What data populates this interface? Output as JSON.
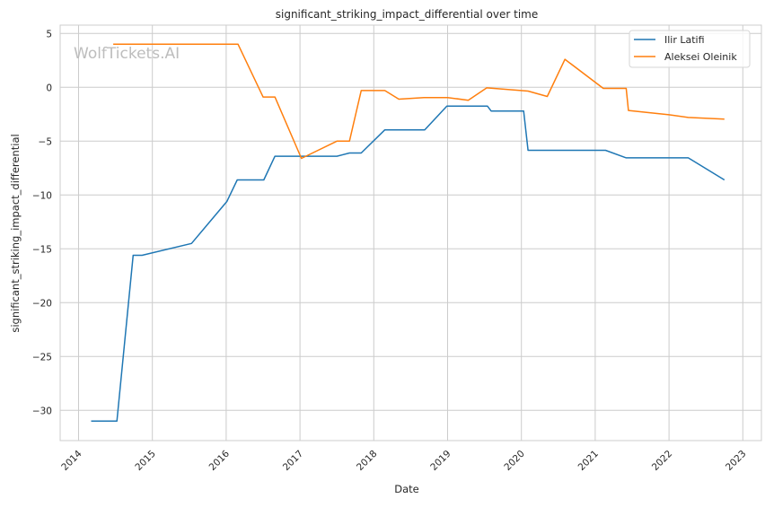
{
  "chart_data": {
    "type": "line",
    "title": "significant_striking_impact_differential over time",
    "xlabel": "Date",
    "ylabel": "significant_striking_impact_differential",
    "xlim": [
      2013.75,
      2023.2
    ],
    "ylim": [
      -32.8,
      5.8
    ],
    "xticks": [
      2014,
      2015,
      2016,
      2017,
      2018,
      2019,
      2020,
      2021,
      2022,
      2023
    ],
    "xtick_labels": [
      "2014",
      "2015",
      "2016",
      "2017",
      "2018",
      "2019",
      "2020",
      "2021",
      "2022",
      "2023"
    ],
    "yticks": [
      5,
      0,
      -5,
      -10,
      -15,
      -20,
      -25,
      -30
    ],
    "ytick_labels": [
      "5",
      "0",
      "−5",
      "−10",
      "−15",
      "−20",
      "−25",
      "−30"
    ],
    "grid": true,
    "legend_position": "top-right",
    "watermark": "WolfTickets.AI",
    "series": [
      {
        "name": "Ilir Latifi",
        "color": "#1f77b4",
        "x": [
          2014.17,
          2014.52,
          2014.74,
          2014.86,
          2015.53,
          2016.01,
          2016.15,
          2016.51,
          2016.66,
          2017.5,
          2017.67,
          2017.83,
          2018.15,
          2018.69,
          2018.99,
          2019.54,
          2019.59,
          2020.03,
          2020.09,
          2021.14,
          2021.42,
          2022.26,
          2022.75
        ],
        "y": [
          -31.0,
          -31.0,
          -15.6,
          -15.6,
          -14.5,
          -10.6,
          -8.6,
          -8.6,
          -6.4,
          -6.4,
          -6.1,
          -6.1,
          -3.95,
          -3.95,
          -1.75,
          -1.75,
          -2.2,
          -2.2,
          -5.85,
          -5.85,
          -6.55,
          -6.55,
          -8.6
        ]
      },
      {
        "name": "Aleksei Oleinik",
        "color": "#ff7f0e",
        "x": [
          2014.47,
          2016.16,
          2016.5,
          2016.66,
          2017.02,
          2017.5,
          2017.67,
          2017.83,
          2018.15,
          2018.34,
          2018.68,
          2019.0,
          2019.28,
          2019.53,
          2020.09,
          2020.35,
          2020.59,
          2021.11,
          2021.42,
          2021.45,
          2022.0,
          2022.26,
          2022.75
        ],
        "y": [
          4.0,
          4.0,
          -0.9,
          -0.9,
          -6.6,
          -5.0,
          -5.0,
          -0.3,
          -0.3,
          -1.1,
          -0.95,
          -0.95,
          -1.2,
          -0.05,
          -0.35,
          -0.85,
          2.6,
          -0.1,
          -0.1,
          -2.15,
          -2.55,
          -2.8,
          -2.95
        ]
      }
    ]
  }
}
